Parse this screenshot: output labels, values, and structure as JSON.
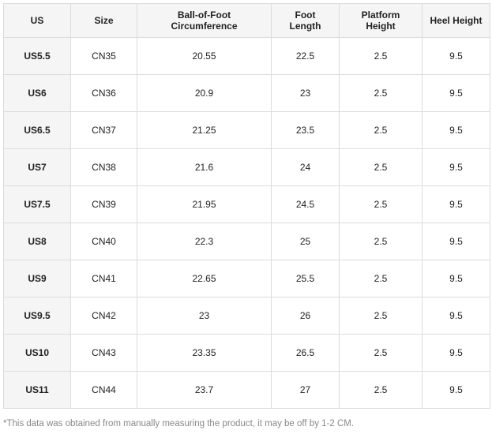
{
  "table": {
    "header": [
      "US",
      "Size",
      "Ball-of-Foot Circumference",
      "Foot Length",
      "Platform Height",
      "Heel Height"
    ],
    "rows": [
      [
        "US5.5",
        "CN35",
        "20.55",
        "22.5",
        "2.5",
        "9.5"
      ],
      [
        "US6",
        "CN36",
        "20.9",
        "23",
        "2.5",
        "9.5"
      ],
      [
        "US6.5",
        "CN37",
        "21.25",
        "23.5",
        "2.5",
        "9.5"
      ],
      [
        "US7",
        "CN38",
        "21.6",
        "24",
        "2.5",
        "9.5"
      ],
      [
        "US7.5",
        "CN39",
        "21.95",
        "24.5",
        "2.5",
        "9.5"
      ],
      [
        "US8",
        "CN40",
        "22.3",
        "25",
        "2.5",
        "9.5"
      ],
      [
        "US9",
        "CN41",
        "22.65",
        "25.5",
        "2.5",
        "9.5"
      ],
      [
        "US9.5",
        "CN42",
        "23",
        "26",
        "2.5",
        "9.5"
      ],
      [
        "US10",
        "CN43",
        "23.35",
        "26.5",
        "2.5",
        "9.5"
      ],
      [
        "US11",
        "CN44",
        "23.7",
        "27",
        "2.5",
        "9.5"
      ]
    ]
  },
  "footnote": "*This data was obtained from manually measuring the product, it may be off by 1-2 CM."
}
